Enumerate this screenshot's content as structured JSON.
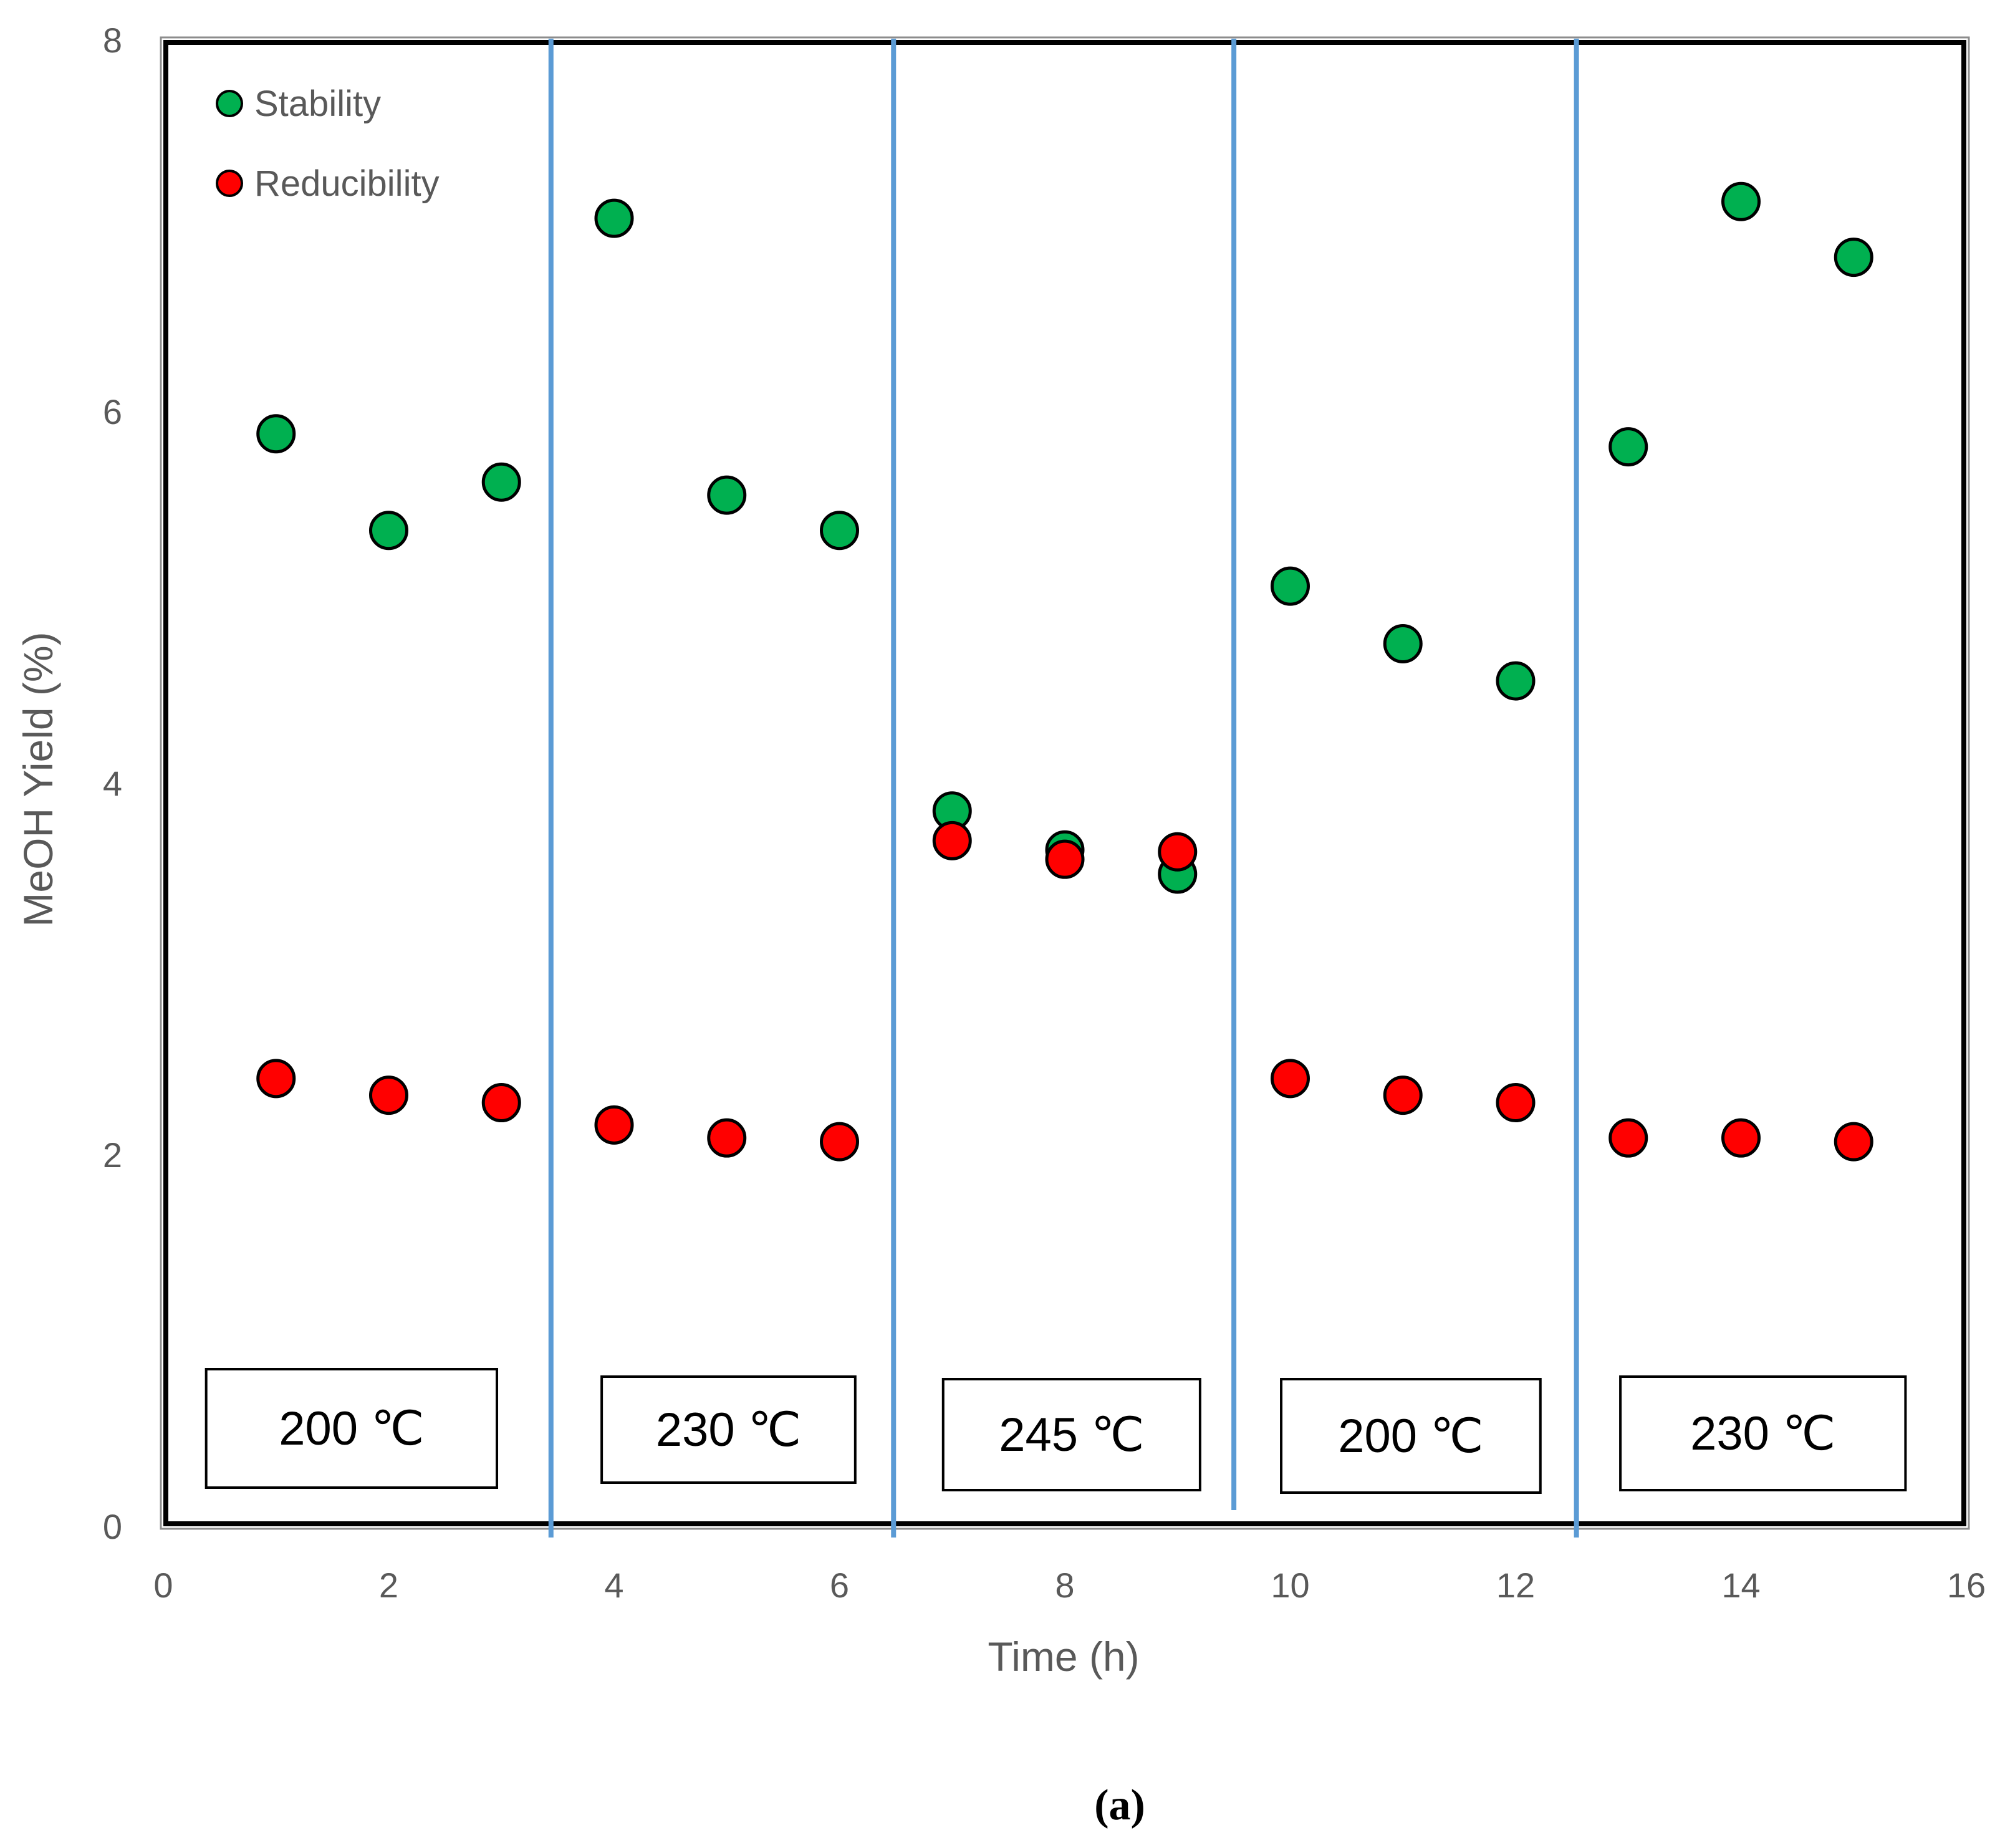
{
  "chart_data": {
    "type": "scatter",
    "title": "",
    "xlabel": "Time (h)",
    "ylabel": "MeOH Yield (%)",
    "xlim": [
      0,
      16
    ],
    "ylim": [
      0,
      8
    ],
    "xticks": [
      "0",
      "2",
      "4",
      "6",
      "8",
      "10",
      "12",
      "14",
      "16"
    ],
    "yticks": [
      "0",
      "2",
      "4",
      "6",
      "8"
    ],
    "legend_position": "top-left",
    "series": [
      {
        "name": "Stability",
        "color": "#00b050",
        "points": [
          {
            "x": 1,
            "y": 5.88
          },
          {
            "x": 2,
            "y": 5.36
          },
          {
            "x": 3,
            "y": 5.62
          },
          {
            "x": 4,
            "y": 7.04
          },
          {
            "x": 5,
            "y": 5.55
          },
          {
            "x": 6,
            "y": 5.36
          },
          {
            "x": 7,
            "y": 3.85
          },
          {
            "x": 8,
            "y": 3.64
          },
          {
            "x": 9,
            "y": 3.51
          },
          {
            "x": 10,
            "y": 5.06
          },
          {
            "x": 11,
            "y": 4.75
          },
          {
            "x": 12,
            "y": 4.55
          },
          {
            "x": 13,
            "y": 5.81
          },
          {
            "x": 14,
            "y": 7.13
          },
          {
            "x": 15,
            "y": 6.83
          }
        ]
      },
      {
        "name": "Reducibility",
        "color": "#ff0000",
        "points": [
          {
            "x": 1,
            "y": 2.41
          },
          {
            "x": 2,
            "y": 2.32
          },
          {
            "x": 3,
            "y": 2.28
          },
          {
            "x": 4,
            "y": 2.16
          },
          {
            "x": 5,
            "y": 2.09
          },
          {
            "x": 6,
            "y": 2.07
          },
          {
            "x": 7,
            "y": 3.69
          },
          {
            "x": 8,
            "y": 3.59
          },
          {
            "x": 9,
            "y": 3.63
          },
          {
            "x": 10,
            "y": 2.41
          },
          {
            "x": 11,
            "y": 2.32
          },
          {
            "x": 12,
            "y": 2.28
          },
          {
            "x": 13,
            "y": 2.09
          },
          {
            "x": 14,
            "y": 2.09
          },
          {
            "x": 15,
            "y": 2.07
          }
        ]
      }
    ],
    "dividers": {
      "color": "#5b9bd5",
      "x": [
        3.44,
        6.48,
        9.5,
        12.54
      ]
    },
    "segments": [
      {
        "label": "200 ℃",
        "x_from": 0.38,
        "x_to": 2.96
      },
      {
        "label": "230 ℃",
        "x_from": 3.89,
        "x_to": 6.14
      },
      {
        "label": "245 ℃",
        "x_from": 6.92,
        "x_to": 9.2
      },
      {
        "label": "200 ℃",
        "x_from": 9.92,
        "x_to": 12.22
      },
      {
        "label": "230 ℃",
        "x_from": 12.93,
        "x_to": 15.46
      }
    ],
    "caption": "(a)"
  }
}
